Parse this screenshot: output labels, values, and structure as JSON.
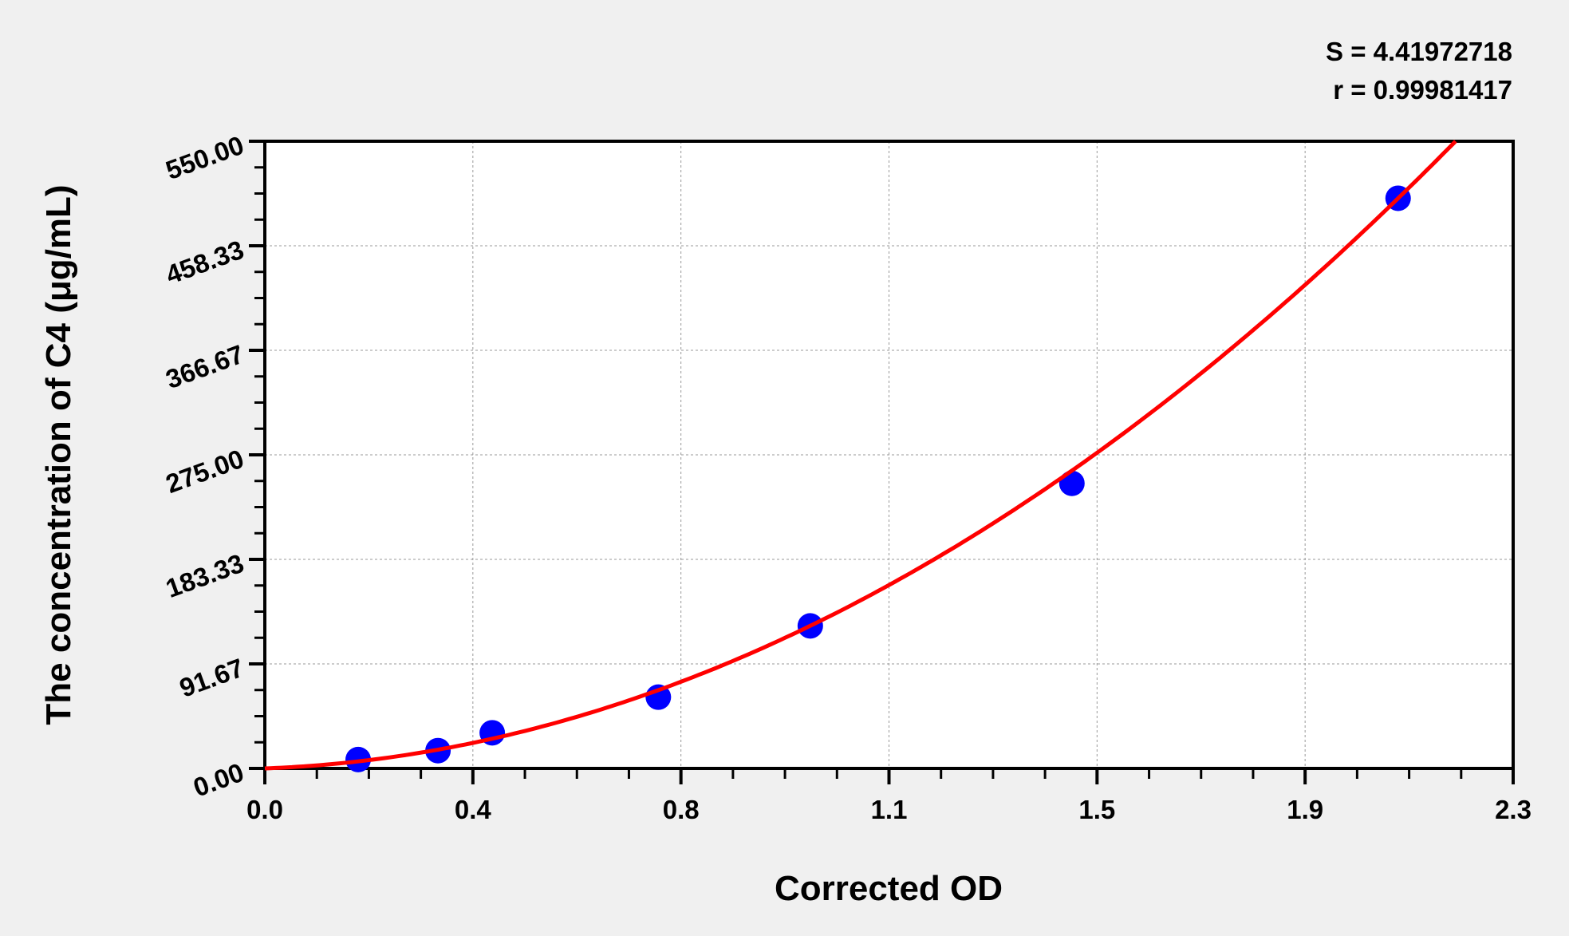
{
  "chart_data": {
    "type": "scatter",
    "xlabel": "Corrected OD",
    "ylabel": "The concentration of C4 (μg/mL)",
    "xlim": [
      0,
      2.3
    ],
    "ylim": [
      0,
      550
    ],
    "x_tick_labels": [
      "0.0",
      "0.4",
      "0.8",
      "1.1",
      "1.5",
      "1.9",
      "2.3"
    ],
    "y_tick_labels": [
      "0.00",
      "91.67",
      "183.33",
      "275.00",
      "366.67",
      "458.33",
      "550.00"
    ],
    "grid": true,
    "annotations": [
      "S = 4.41972718",
      "r = 0.99981417"
    ],
    "points": [
      {
        "x": 0.172,
        "y": 7.8
      },
      {
        "x": 0.319,
        "y": 15.6
      },
      {
        "x": 0.419,
        "y": 31.25
      },
      {
        "x": 0.725,
        "y": 62.5
      },
      {
        "x": 1.005,
        "y": 125
      },
      {
        "x": 1.487,
        "y": 250
      },
      {
        "x": 2.088,
        "y": 500
      }
    ],
    "fit_curve": {
      "type": "polynomial",
      "color": "#ff0000"
    },
    "colors": {
      "points": "#0000ff",
      "curve": "#ff0000",
      "background": "#f0f0f0",
      "plot_background": "#ffffff"
    }
  }
}
